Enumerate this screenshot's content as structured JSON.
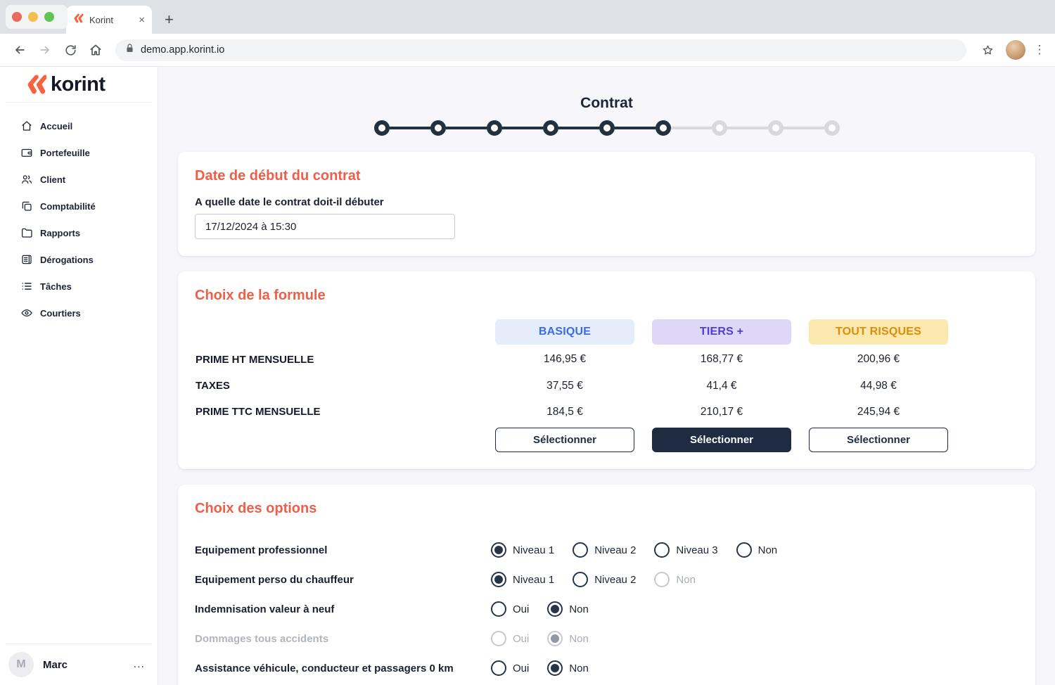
{
  "browser": {
    "tab_title": "Korint",
    "tab_close": "×",
    "new_tab": "+",
    "url": "demo.app.korint.io"
  },
  "sidebar": {
    "logo_text": "korint",
    "items": [
      {
        "label": "Accueil",
        "icon": "home-icon"
      },
      {
        "label": "Portefeuille",
        "icon": "wallet-icon"
      },
      {
        "label": "Client",
        "icon": "users-icon"
      },
      {
        "label": "Comptabilité",
        "icon": "copy-icon"
      },
      {
        "label": "Rapports",
        "icon": "folder-icon"
      },
      {
        "label": "Dérogations",
        "icon": "document-icon"
      },
      {
        "label": "Tâches",
        "icon": "checklist-icon"
      },
      {
        "label": "Courtiers",
        "icon": "eye-icon"
      }
    ],
    "user": {
      "initial": "M",
      "name": "Marc",
      "menu": "..."
    }
  },
  "stepper": {
    "title": "Contrat",
    "steps_total": 9,
    "steps_completed": 6,
    "done_color": "#22303f",
    "todo_color": "#d8d9dd"
  },
  "date_section": {
    "title": "Date de début du contrat",
    "question": "A quelle date le contrat doit-il débuter",
    "value": "17/12/2024 à 15:30"
  },
  "formula_section": {
    "title": "Choix de la formule",
    "row_labels": [
      "PRIME HT MENSUELLE",
      "TAXES",
      "PRIME TTC MENSUELLE"
    ],
    "button_label": "Sélectionner",
    "plans": [
      {
        "name": "BASIQUE",
        "slug": "basique",
        "bg": "#e5edfb",
        "color": "#3d6be4",
        "prime_ht": "146,95 €",
        "taxes": "37,55 €",
        "prime_ttc": "184,5 €",
        "selected": false
      },
      {
        "name": "TIERS +",
        "slug": "tiers-plus",
        "bg": "#ded7f8",
        "color": "#4f3ed0",
        "prime_ht": "168,77 €",
        "taxes": "41,4 €",
        "prime_ttc": "210,17 €",
        "selected": true
      },
      {
        "name": "TOUT RISQUES",
        "slug": "tout-risques",
        "bg": "#fbe8ae",
        "color": "#df8c0a",
        "prime_ht": "200,96 €",
        "taxes": "44,98 €",
        "prime_ttc": "245,94 €",
        "selected": false
      }
    ]
  },
  "options_section": {
    "title": "Choix des options",
    "rows": [
      {
        "label": "Equipement professionnel",
        "disabled": false,
        "choices": [
          {
            "label": "Niveau 1",
            "selected": true,
            "disabled": false
          },
          {
            "label": "Niveau 2",
            "selected": false,
            "disabled": false
          },
          {
            "label": "Niveau 3",
            "selected": false,
            "disabled": false
          },
          {
            "label": "Non",
            "selected": false,
            "disabled": false
          }
        ]
      },
      {
        "label": "Equipement perso du chauffeur",
        "disabled": false,
        "choices": [
          {
            "label": "Niveau 1",
            "selected": true,
            "disabled": false
          },
          {
            "label": "Niveau 2",
            "selected": false,
            "disabled": false
          },
          {
            "label": "Non",
            "selected": false,
            "disabled": true
          }
        ]
      },
      {
        "label": "Indemnisation valeur à neuf",
        "disabled": false,
        "choices": [
          {
            "label": "Oui",
            "selected": false,
            "disabled": false
          },
          {
            "label": "Non",
            "selected": true,
            "disabled": false
          }
        ]
      },
      {
        "label": "Dommages tous accidents",
        "disabled": true,
        "choices": [
          {
            "label": "Oui",
            "selected": false,
            "disabled": true
          },
          {
            "label": "Non",
            "selected": true,
            "disabled": true
          }
        ]
      },
      {
        "label": "Assistance véhicule, conducteur et passagers 0 km",
        "disabled": false,
        "choices": [
          {
            "label": "Oui",
            "selected": false,
            "disabled": false
          },
          {
            "label": "Non",
            "selected": true,
            "disabled": false
          }
        ]
      }
    ]
  }
}
